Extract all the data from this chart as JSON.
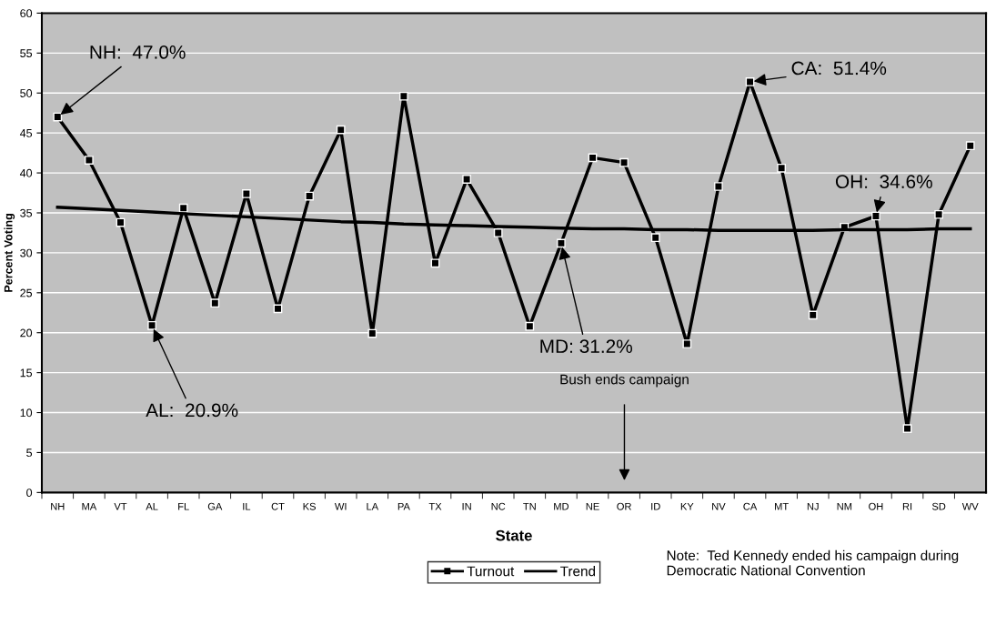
{
  "chart_data": {
    "type": "line",
    "xlabel": "State",
    "ylabel": "Percent Voting",
    "categories": [
      "NH",
      "MA",
      "VT",
      "AL",
      "FL",
      "GA",
      "IL",
      "CT",
      "KS",
      "WI",
      "LA",
      "PA",
      "TX",
      "IN",
      "NC",
      "TN",
      "MD",
      "NE",
      "OR",
      "ID",
      "KY",
      "NV",
      "CA",
      "MT",
      "NJ",
      "NM",
      "OH",
      "RI",
      "SD",
      "WV"
    ],
    "series": [
      {
        "name": "Turnout",
        "color": "#000000",
        "marker": "square",
        "values": [
          47.0,
          41.6,
          33.8,
          20.9,
          35.6,
          23.7,
          37.4,
          23.0,
          37.1,
          45.4,
          19.9,
          49.6,
          28.7,
          39.2,
          32.5,
          20.8,
          31.2,
          41.9,
          41.3,
          31.9,
          18.6,
          38.3,
          51.4,
          40.6,
          22.2,
          33.2,
          34.6,
          8.0,
          34.8,
          43.4
        ]
      },
      {
        "name": "Trend",
        "color": "#000000",
        "marker": "none",
        "values": [
          35.7,
          35.5,
          35.3,
          35.1,
          34.9,
          34.7,
          34.5,
          34.3,
          34.1,
          33.9,
          33.8,
          33.6,
          33.5,
          33.4,
          33.3,
          33.2,
          33.1,
          33.0,
          33.0,
          32.9,
          32.9,
          32.8,
          32.8,
          32.8,
          32.8,
          32.9,
          32.9,
          32.9,
          33.0,
          33.0
        ]
      }
    ],
    "ylim": [
      0,
      60
    ],
    "yticks": [
      0,
      5,
      10,
      15,
      20,
      25,
      30,
      35,
      40,
      45,
      50,
      55,
      60
    ],
    "grid": "y",
    "legend": "bottom",
    "line_style": "solid",
    "annotations": [
      {
        "text": "NH:  47.0%",
        "x": "NH",
        "y": 47.0
      },
      {
        "text": "AL:  20.9%",
        "x": "AL",
        "y": 20.9
      },
      {
        "text": "MD: 31.2%",
        "x": "MD",
        "y": 31.2
      },
      {
        "text": "CA:  51.4%",
        "x": "CA",
        "y": 51.4
      },
      {
        "text": "OH:  34.6%",
        "x": "OH",
        "y": 34.6
      },
      "Bush ends campaign",
      "Note:  Ted Kennedy ended his campaign during Democratic National Convention"
    ]
  }
}
